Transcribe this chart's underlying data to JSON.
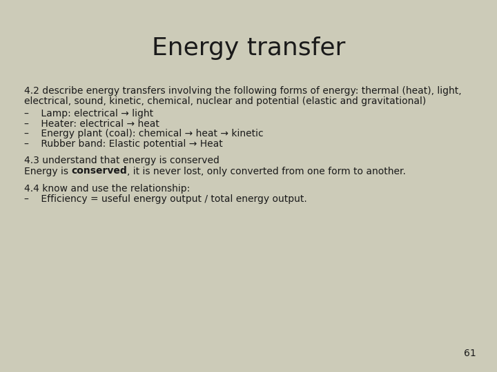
{
  "title": "Energy transfer",
  "background_color": "#cccbb8",
  "title_fontsize": 26,
  "body_fontsize": 10,
  "text_color": "#1a1a1a",
  "page_number": "61",
  "line1": "4.2 describe energy transfers involving the following forms of energy: thermal (heat), light,",
  "line2": "electrical, sound, kinetic, chemical, nuclear and potential (elastic and gravitational)",
  "bullet1": "–    Lamp: electrical → light",
  "bullet2": "–    Heater: electrical → heat",
  "bullet3": "–    Energy plant (coal): chemical → heat → kinetic",
  "bullet4": "–    Rubber band: Elastic potential → Heat",
  "line3": "4.3 understand that energy is conserved",
  "line4_pre": "Energy is ",
  "line4_bold": "conserved",
  "line4_post": ", it is never lost, only converted from one form to another.",
  "line5": "4.4 know and use the relationship:",
  "line6": "–    Efficiency = useful energy output / total energy output."
}
